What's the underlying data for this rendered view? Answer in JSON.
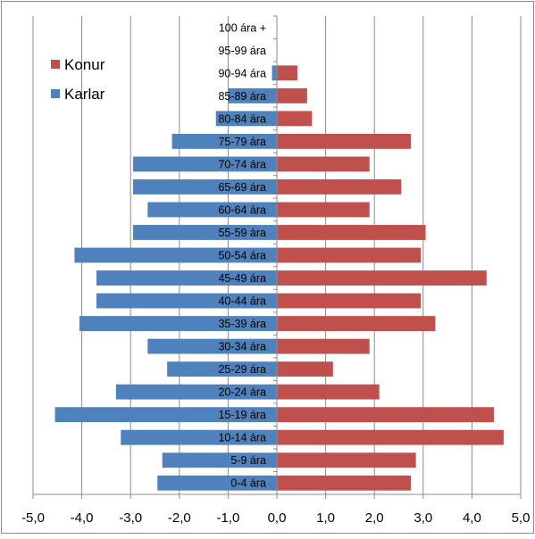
{
  "chart_data": {
    "type": "bar",
    "orientation": "horizontal",
    "categories": [
      "0-4 ára",
      "5-9 ára",
      "10-14 ára",
      "15-19 ára",
      "20-24 ára",
      "25-29 ára",
      "30-34 ára",
      "35-39 ára",
      "40-44 ára",
      "45-49 ára",
      "50-54 ára",
      "55-59 ára",
      "60-64 ára",
      "65-69 ára",
      "70-74 ára",
      "75-79 ára",
      "80-84 ára",
      "85-89 ára",
      "90-94 ára",
      "95-99 ára",
      "100 ára +"
    ],
    "series": [
      {
        "name": "Konur",
        "color": "#c0504d",
        "values": [
          2.75,
          2.85,
          4.65,
          4.45,
          2.1,
          1.15,
          1.9,
          3.25,
          2.95,
          4.3,
          2.95,
          3.05,
          1.9,
          2.55,
          1.9,
          2.75,
          0.72,
          0.62,
          0.42,
          0,
          0
        ]
      },
      {
        "name": "Karlar",
        "color": "#4f81bd",
        "values": [
          -2.45,
          -2.35,
          -3.2,
          -4.55,
          -3.3,
          -2.25,
          -2.65,
          -4.05,
          -3.7,
          -3.7,
          -4.15,
          -2.95,
          -2.65,
          -2.95,
          -2.95,
          -2.15,
          -1.25,
          -1.0,
          -0.1,
          0,
          0
        ]
      }
    ],
    "x_ticks": [
      "-5,0",
      "-4,0",
      "-3,0",
      "-2,0",
      "-1,0",
      "0,0",
      "1,0",
      "2,0",
      "3,0",
      "4,0",
      "5,0"
    ],
    "xlim": [
      -5,
      5
    ],
    "grid": "vertical",
    "legend_position": "top-left",
    "title": "",
    "xlabel": "",
    "ylabel": ""
  }
}
